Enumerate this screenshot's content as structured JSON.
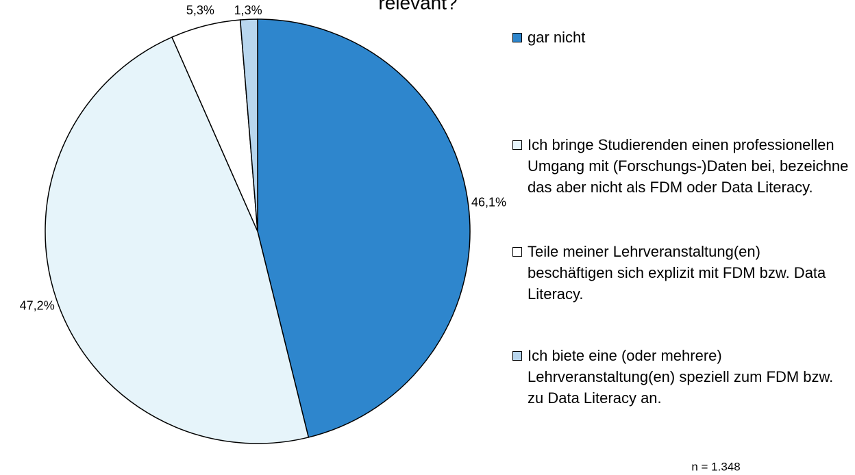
{
  "chart_data": {
    "type": "pie",
    "title": "relevant?",
    "categories": [
      "gar nicht",
      "Ich bringe Studierenden einen professionellen Umgang mit (Forschungs-)Daten bei, bezeichne das aber nicht als FDM oder Data Literacy.",
      "Teile meiner Lehrveranstaltung(en) beschäftigen sich explizit mit FDM bzw. Data Literacy.",
      "Ich biete eine (oder mehrere) Lehrveranstaltung(en) speziell zum FDM bzw. zu Data Literacy an."
    ],
    "values": [
      46.1,
      47.2,
      5.3,
      1.3
    ],
    "value_labels": [
      "46,1%",
      "47,2%",
      "5,3%",
      "1,3%"
    ],
    "colors": [
      "#2e86cd",
      "#e6f4fa",
      "#ffffff",
      "#b8d6ee"
    ],
    "annotation": "n = 1.348"
  }
}
